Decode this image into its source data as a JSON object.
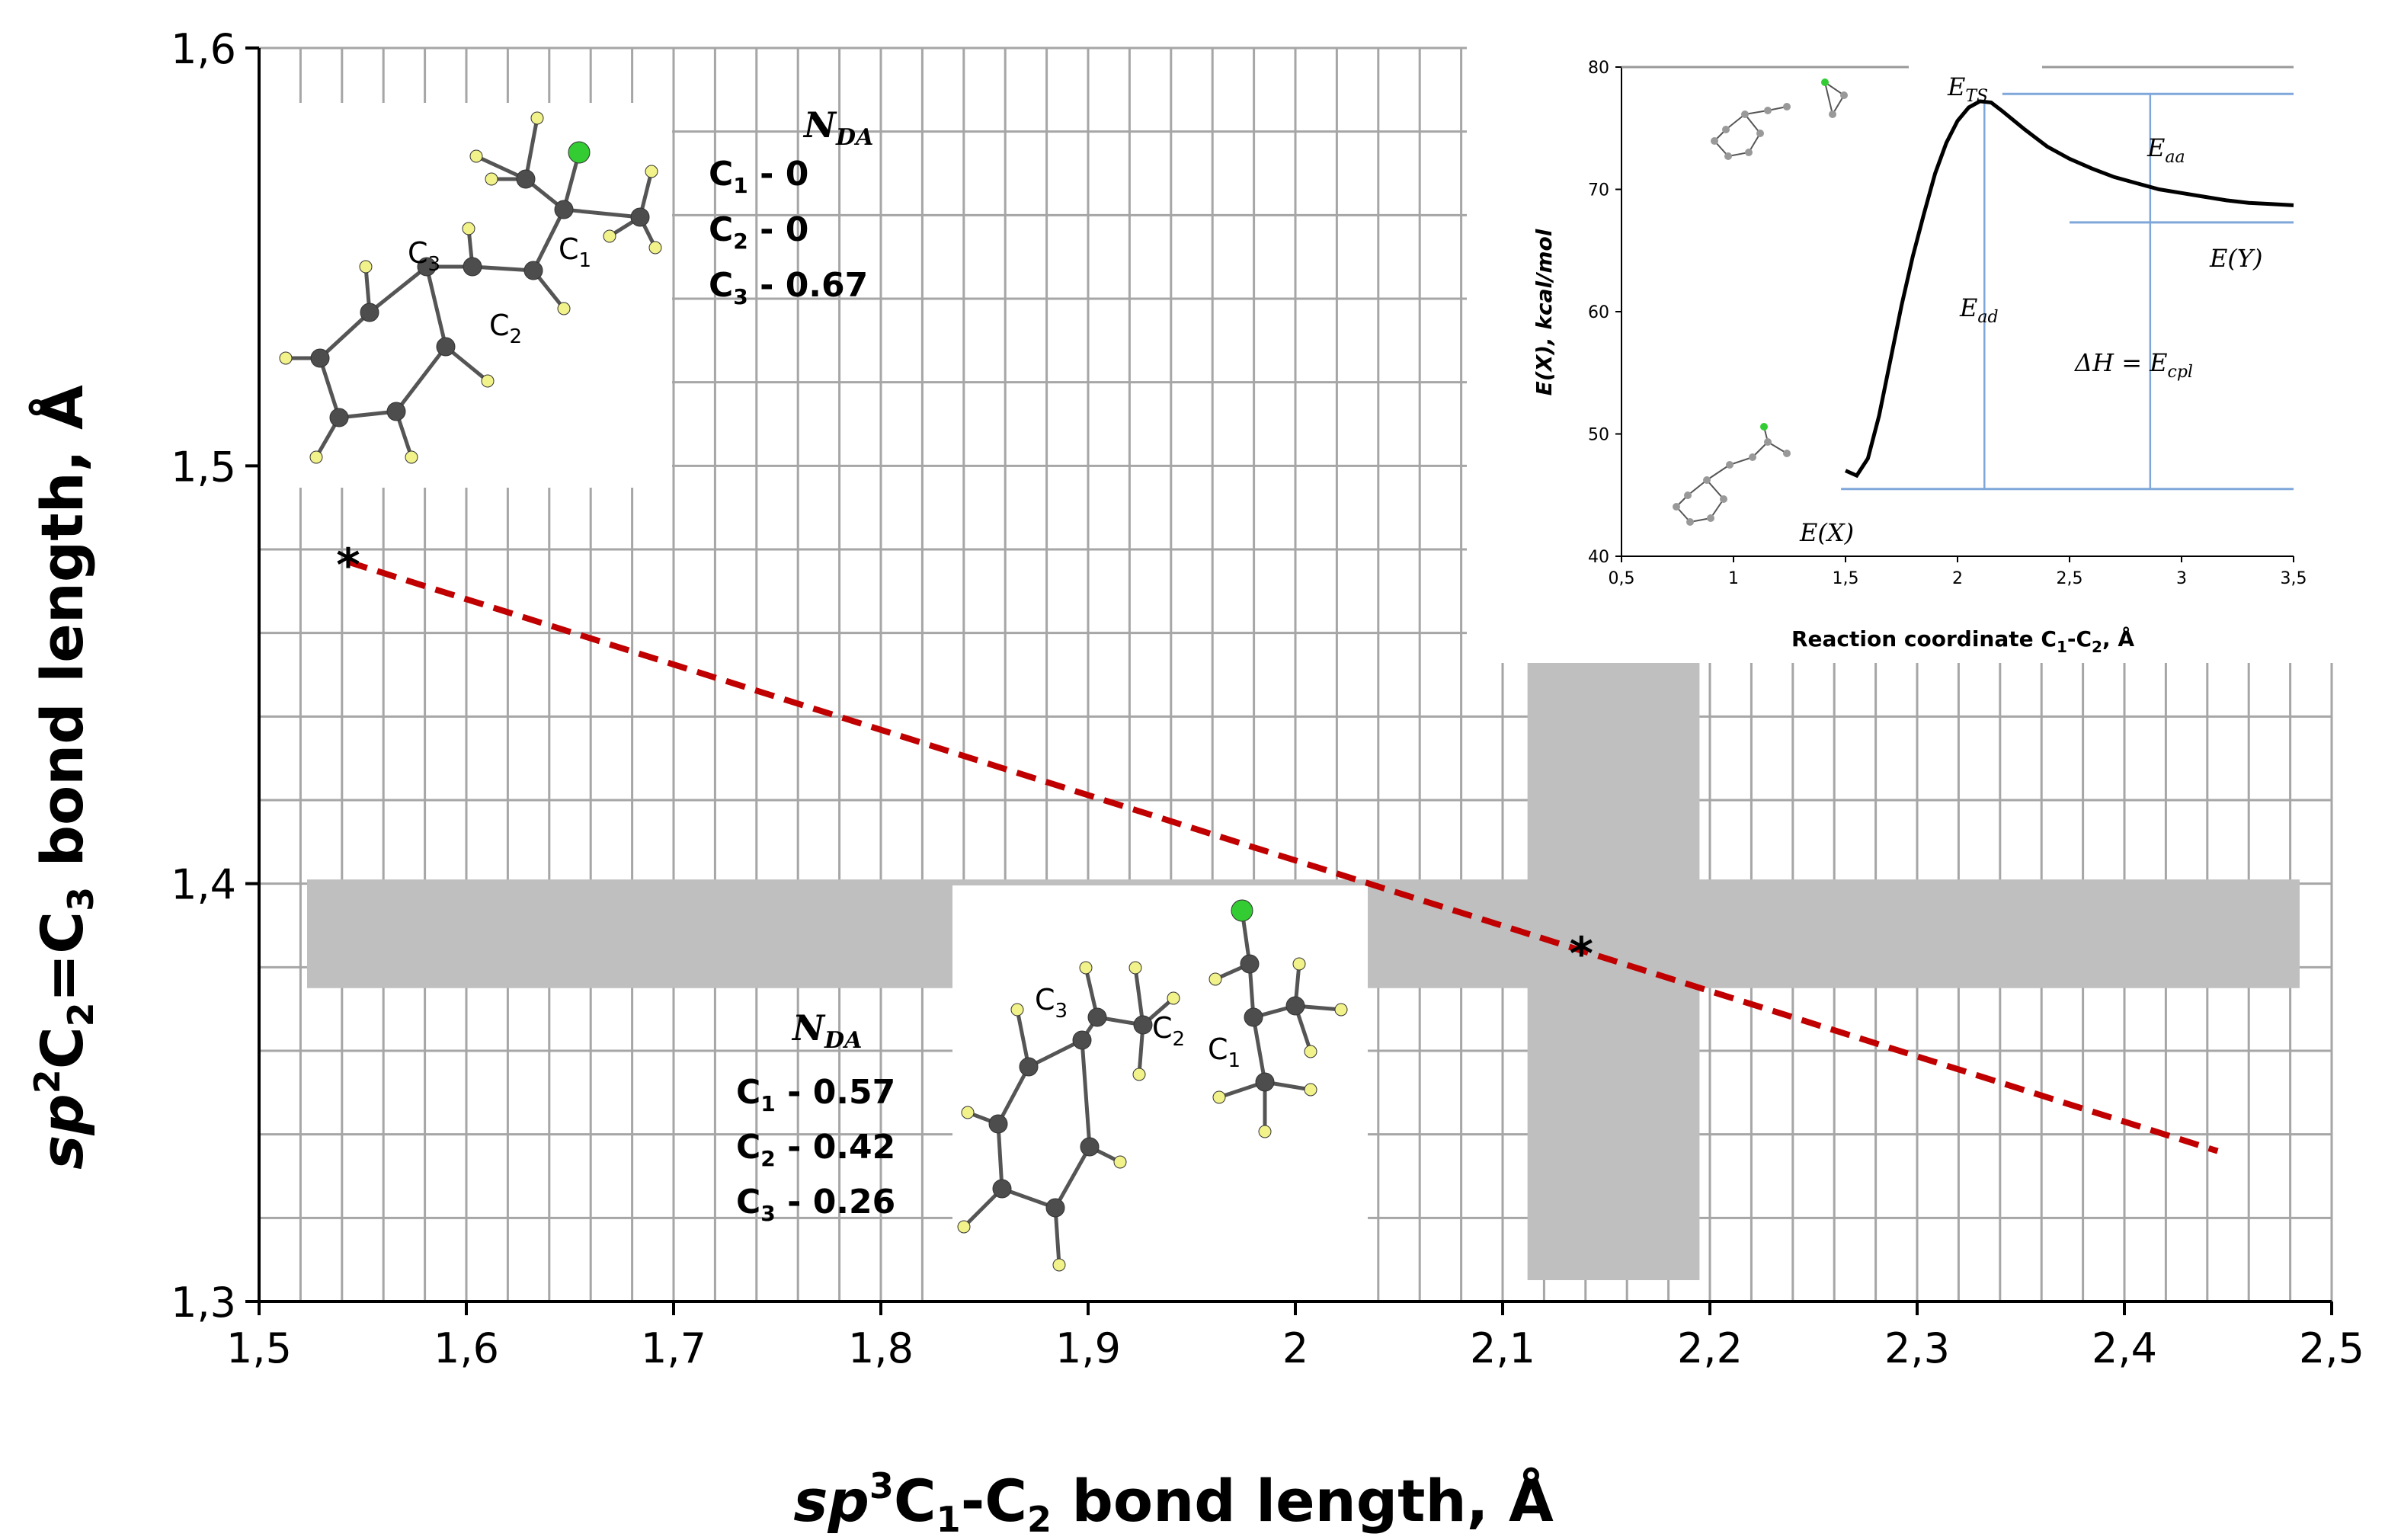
{
  "chart_data": {
    "type": "scatter",
    "xlabel_prefix": "sp",
    "xlabel_sup": "3",
    "xlabel_c1": "C",
    "xlabel_c1_sub": "1",
    "xlabel_mid": "-C",
    "xlabel_c2_sub": "2",
    "xlabel_suffix": " bond length, Å",
    "ylabel_prefix": "sp",
    "ylabel_sup": "2",
    "ylabel_c2": "C",
    "ylabel_c2_sub": "2",
    "ylabel_mid": "=C",
    "ylabel_c3_sub": "3",
    "ylabel_suffix": " bond length, Å",
    "xlim": [
      1.5,
      2.5
    ],
    "ylim": [
      1.3,
      1.6
    ],
    "x_ticks": [
      "1,5",
      "1,6",
      "1,7",
      "1,8",
      "1,9",
      "2",
      "2,1",
      "2,2",
      "2,3",
      "2,4",
      "2,5"
    ],
    "y_ticks": [
      "1,3",
      "1,4",
      "1,5",
      "1,6"
    ],
    "points": [
      {
        "x": 1.543,
        "y": 1.478,
        "marker": "*"
      },
      {
        "x": 2.138,
        "y": 1.385,
        "marker": "*"
      }
    ],
    "trendline": {
      "x": [
        1.543,
        2.445
      ],
      "y": [
        1.477,
        1.336
      ],
      "color": "#c00000",
      "style": "dashed"
    },
    "highlight_bands": [
      {
        "axis": "y",
        "from": 1.375,
        "to": 1.401,
        "color": "#bfbfbf"
      },
      {
        "axis": "x",
        "from": 2.112,
        "to": 2.195,
        "color": "#bfbfbf"
      }
    ],
    "inset": {
      "type": "line",
      "xlabel": "Reaction coordinate C",
      "xlabel_sub": "1",
      "xlabel_mid": "-C",
      "xlabel_sub2": "2",
      "xlabel_suffix": ",  Å",
      "ylabel": "E(X), kcal/mol",
      "xlim": [
        0.5,
        3.5
      ],
      "ylim": [
        40,
        80
      ],
      "x_ticks": [
        "0,5",
        "1",
        "1,5",
        "2",
        "2,5",
        "3",
        "3,5"
      ],
      "y_ticks": [
        "40",
        "50",
        "60",
        "70",
        "80"
      ],
      "curve": {
        "x": [
          1.5,
          1.55,
          1.6,
          1.65,
          1.7,
          1.75,
          1.8,
          1.85,
          1.9,
          1.95,
          2.0,
          2.05,
          2.1,
          2.15,
          2.2,
          2.3,
          2.4,
          2.5,
          2.6,
          2.7,
          2.8,
          2.9,
          3.0,
          3.1,
          3.2,
          3.3,
          3.4,
          3.5
        ],
        "y": [
          47.0,
          46.6,
          48.0,
          51.5,
          56.0,
          60.5,
          64.5,
          68.0,
          71.3,
          73.8,
          75.6,
          76.7,
          77.2,
          77.1,
          76.4,
          74.9,
          73.5,
          72.5,
          71.7,
          71.0,
          70.5,
          70.0,
          69.7,
          69.4,
          69.1,
          68.9,
          68.8,
          68.7
        ]
      },
      "labels": {
        "ets_base": "E",
        "ets_sub": "TS",
        "eaa_base": "E",
        "eaa_sub": "aa",
        "ey": "E(Y)",
        "ead_base": "E",
        "ead_sub": "ad",
        "dh_base": "ΔH = E",
        "dh_sub": "cpl",
        "ex": "E(X)"
      }
    }
  },
  "structure_top": {
    "nda_base": "N",
    "nda_sub": "DA",
    "rows": [
      {
        "atom": "C",
        "sub": "1",
        "value": "0"
      },
      {
        "atom": "C",
        "sub": "2",
        "value": "0"
      },
      {
        "atom": "C",
        "sub": "3",
        "value": "0.67"
      }
    ],
    "atom_labels": [
      {
        "atom": "C",
        "sub": "3"
      },
      {
        "atom": "C",
        "sub": "1"
      },
      {
        "atom": "C",
        "sub": "2"
      }
    ]
  },
  "structure_bottom": {
    "nda_base": "N",
    "nda_sub": "DA",
    "rows": [
      {
        "atom": "C",
        "sub": "1",
        "value": "0.57"
      },
      {
        "atom": "C",
        "sub": "2",
        "value": "0.42"
      },
      {
        "atom": "C",
        "sub": "3",
        "value": "0.26"
      }
    ],
    "atom_labels": [
      {
        "atom": "C",
        "sub": "3"
      },
      {
        "atom": "C",
        "sub": "2"
      },
      {
        "atom": "C",
        "sub": "1"
      }
    ]
  },
  "colors": {
    "carbon": "#4d4d4d",
    "hydrogen": "#f2f28a",
    "chlorine": "#33cc33",
    "grid": "#a6a6a6",
    "band": "#bfbfbf",
    "trend": "#c00000",
    "inset_arrow": "#7fa7d9"
  }
}
